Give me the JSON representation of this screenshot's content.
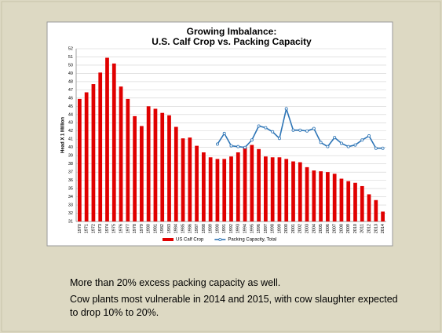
{
  "chart_data": {
    "type": "bar",
    "title": "Growing Imbalance:",
    "subtitle": "U.S. Calf Crop vs. Packing Capacity",
    "y_label": "Head X 1 Million",
    "categories": [
      "1970",
      "1971",
      "1972",
      "1973",
      "1974",
      "1975",
      "1976",
      "1977",
      "1978",
      "1979",
      "1980",
      "1981",
      "1982",
      "1983",
      "1984",
      "1985",
      "1986",
      "1987",
      "1988",
      "1989",
      "1990",
      "1991",
      "1992",
      "1993",
      "1994",
      "1995",
      "1996",
      "1997",
      "1998",
      "1999",
      "2000",
      "2001",
      "2002",
      "2003",
      "2004",
      "2005",
      "2006",
      "2007",
      "2008",
      "2009",
      "2010",
      "2011",
      "2012",
      "2013",
      "2014"
    ],
    "series": [
      {
        "name": "US Calf Crop",
        "type": "bar",
        "color": "#e00000",
        "values": [
          45.9,
          46.7,
          47.7,
          49.1,
          50.9,
          50.2,
          47.4,
          45.9,
          43.8,
          42.6,
          45.0,
          44.7,
          44.2,
          43.9,
          42.5,
          41.1,
          41.2,
          40.2,
          39.4,
          38.8,
          38.6,
          38.6,
          38.9,
          39.4,
          40.0,
          40.3,
          39.8,
          38.9,
          38.8,
          38.8,
          38.6,
          38.3,
          38.2,
          37.6,
          37.2,
          37.1,
          37.0,
          36.8,
          36.2,
          35.9,
          35.7,
          35.3,
          34.3,
          33.6,
          32.2
        ]
      },
      {
        "name": "Packing Capacity, Total",
        "type": "line",
        "color": "#2e75b6",
        "values": [
          null,
          null,
          null,
          null,
          null,
          null,
          null,
          null,
          null,
          null,
          null,
          null,
          null,
          null,
          null,
          null,
          null,
          null,
          null,
          null,
          40.4,
          41.7,
          40.2,
          40.1,
          40.0,
          40.9,
          42.6,
          42.4,
          41.9,
          41.1,
          44.7,
          42.1,
          42.1,
          42.0,
          42.3,
          40.6,
          40.1,
          41.2,
          40.5,
          40.1,
          40.3,
          40.9,
          41.4,
          39.9,
          39.9
        ]
      }
    ],
    "ylim": [
      31,
      52
    ],
    "yticks": [
      31,
      32,
      33,
      34,
      35,
      36,
      37,
      38,
      39,
      40,
      41,
      42,
      43,
      44,
      45,
      46,
      47,
      48,
      49,
      50,
      51,
      52
    ],
    "grid": true,
    "legend": "bottom"
  },
  "notes": [
    "More than 20% excess packing capacity as well.",
    "Cow plants most vulnerable in 2014 and 2015, with cow slaughter expected to drop 10% to 20%."
  ]
}
